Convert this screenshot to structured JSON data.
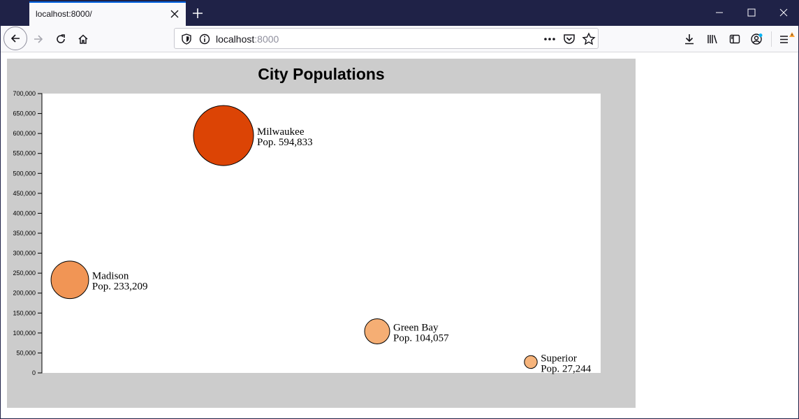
{
  "browser": {
    "tab_title": "localhost:8000/",
    "url_host": "localhost",
    "url_port": ":8000"
  },
  "chart_data": {
    "type": "scatter",
    "title": "City Populations",
    "xlabel": "",
    "ylabel": "",
    "ylim": [
      0,
      700000
    ],
    "yticks": [
      "0",
      "50,000",
      "100,000",
      "150,000",
      "200,000",
      "250,000",
      "300,000",
      "350,000",
      "400,000",
      "450,000",
      "500,000",
      "550,000",
      "600,000",
      "650,000",
      "700,000"
    ],
    "points": [
      {
        "city": "Madison",
        "label": "Pop. 233,209",
        "population": 233209,
        "color": "#f19555"
      },
      {
        "city": "Milwaukee",
        "label": "Pop. 594,833",
        "population": 594833,
        "color": "#dc4405"
      },
      {
        "city": "Green Bay",
        "label": "Pop. 104,057",
        "population": 104057,
        "color": "#f5ae74"
      },
      {
        "city": "Superior",
        "label": "Pop. 27,244",
        "population": 27244,
        "color": "#f6b47c"
      }
    ],
    "colors": {
      "panel": "#cccccc",
      "plot": "#ffffff"
    }
  }
}
